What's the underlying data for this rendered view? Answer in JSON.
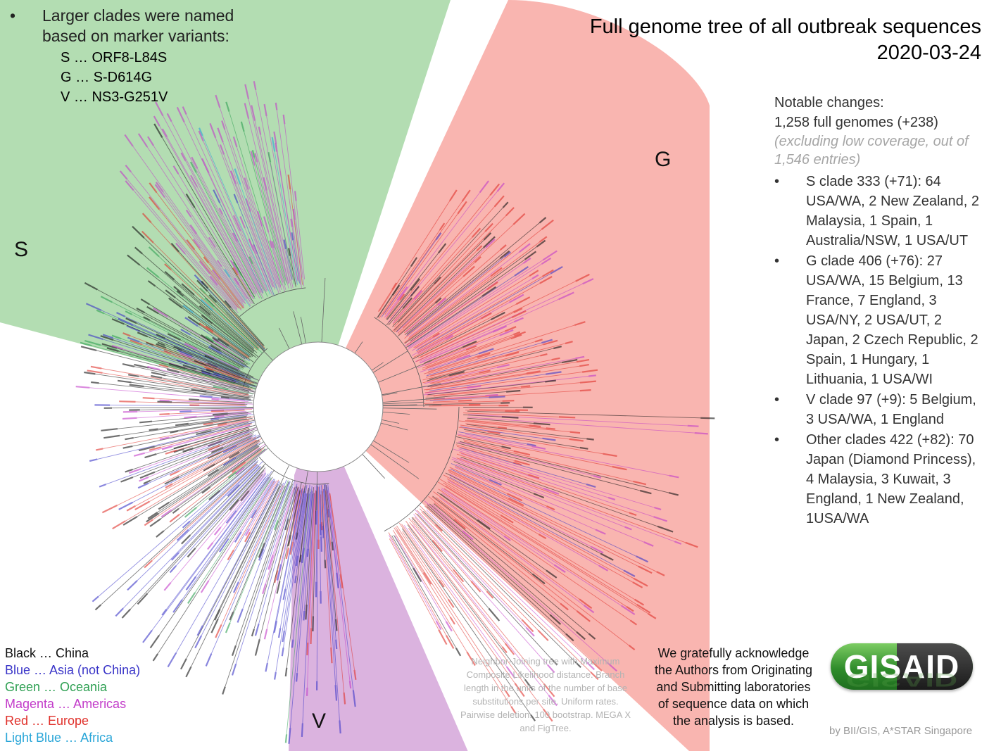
{
  "title": {
    "line1": "Full genome tree of all outbreak sequences",
    "line2": "2020-03-24"
  },
  "marker_note": {
    "bullet": "•",
    "lines": [
      "Larger clades were named",
      "based on marker variants:"
    ],
    "codes": [
      "S … ORF8-L84S",
      "G … S-D614G",
      "V … NS3-G251V"
    ]
  },
  "clades": [
    {
      "letter": "S",
      "sector_color": "#b3ddb2"
    },
    {
      "letter": "G",
      "sector_color": "#f9b5b0"
    },
    {
      "letter": "V",
      "sector_color": "#dbb3df"
    }
  ],
  "notes": {
    "heading": "Notable changes:",
    "genomes": "1,258 full genomes (+238)",
    "sub": "(excluding low coverage, out of 1,546 entries)",
    "items": [
      "S clade 333 (+71): 64 USA/WA, 2 New Zealand, 2 Malaysia, 1 Spain, 1 Australia/NSW, 1 USA/UT",
      "G clade 406 (+76): 27 USA/WA, 15 Belgium, 13 France, 7 England, 3 USA/NY, 2 USA/UT, 2 Japan, 2 Czech Republic, 2 Spain, 1 Hungary, 1 Lithuania, 1 USA/WI",
      "V clade 97 (+9): 5 Belgium, 3 USA/WA, 1 England",
      "Other clades 422 (+82): 70 Japan (Diamond Princess), 4 Malaysia, 3 Kuwait, 3 England, 1 New Zealand, 1USA/WA"
    ]
  },
  "legend": [
    {
      "label": "Black … China",
      "color": "#111111"
    },
    {
      "label": "Blue … Asia (not China)",
      "color": "#3a35c8"
    },
    {
      "label": "Green … Oceania",
      "color": "#2fa053"
    },
    {
      "label": "Magenta … Americas",
      "color": "#c23bc9"
    },
    {
      "label": "Red … Europe",
      "color": "#e0312b"
    },
    {
      "label": "Light Blue … Africa",
      "color": "#2aa6d8"
    }
  ],
  "method_note": "Neighbor-Joining tree with Maximum Composite Likelihood distance. Branch length in the units of the number of base substitutions per site. Uniform rates. Pairwise deletion. 100 bootstrap. MEGA X and FigTree.",
  "acknowledgement": "We gratefully acknowledge the Authors from Originating and Submitting laboratories of sequence data on which the analysis is based.",
  "logo": {
    "text": "GISAID"
  },
  "credit": "by BII/GIS, A*STAR Singapore"
}
